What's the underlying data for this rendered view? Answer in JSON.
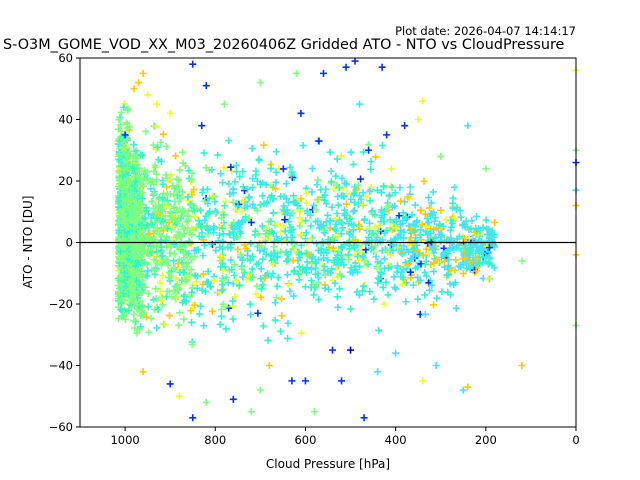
{
  "chart_data": {
    "type": "scatter",
    "title": "S-O3M_GOME_VOD_XX_M03_20260406Z Gridded ATO - NTO vs CloudPressure",
    "annotation": "Plot date: 2026-04-07 14:14:17",
    "xlabel": "Cloud Pressure [hPa]",
    "ylabel": "ATO - NTO [DU]",
    "xlim": [
      1100,
      0
    ],
    "ylim": [
      -60,
      60
    ],
    "x_inverted": true,
    "xticks": [
      1000,
      800,
      600,
      400,
      200,
      0
    ],
    "yticks": [
      -60,
      -40,
      -20,
      0,
      20,
      40,
      60
    ],
    "reference_line_y": 0,
    "marker": "plus",
    "grid": false,
    "legend": "none",
    "colors": {
      "green": "#7fff7f",
      "cyan": "#2ff5d0",
      "aqua": "#48e0ff",
      "yellow": "#e8ff2a",
      "gold": "#ffc800",
      "blue": "#0030ff",
      "darkblue": "#0000c8"
    },
    "cloud_regions": [
      {
        "x": [
          1015,
          990
        ],
        "y": [
          -35,
          55
        ],
        "color": "green",
        "density": 1.0
      },
      {
        "x": [
          990,
          850
        ],
        "y": [
          -40,
          45
        ],
        "color": "green",
        "density": 0.9
      },
      {
        "x": [
          850,
          600
        ],
        "y": [
          -35,
          40
        ],
        "color": "cyan",
        "density": 0.8
      },
      {
        "x": [
          600,
          400
        ],
        "y": [
          -30,
          35
        ],
        "color": "cyan",
        "density": 0.7
      },
      {
        "x": [
          400,
          250
        ],
        "y": [
          -25,
          25
        ],
        "color": "aqua",
        "density": 0.5
      },
      {
        "x": [
          250,
          180
        ],
        "y": [
          -15,
          10
        ],
        "color": "aqua",
        "density": 0.3
      }
    ],
    "sample_points": [
      {
        "x": 970,
        "y": 52,
        "c": "gold"
      },
      {
        "x": 960,
        "y": 55,
        "c": "gold"
      },
      {
        "x": 950,
        "y": 48,
        "c": "yellow"
      },
      {
        "x": 980,
        "y": 50,
        "c": "gold"
      },
      {
        "x": 930,
        "y": 45,
        "c": "yellow"
      },
      {
        "x": 900,
        "y": 42,
        "c": "yellow"
      },
      {
        "x": 850,
        "y": 58,
        "c": "blue"
      },
      {
        "x": 820,
        "y": 51,
        "c": "blue"
      },
      {
        "x": 780,
        "y": 45,
        "c": "green"
      },
      {
        "x": 700,
        "y": 52,
        "c": "green"
      },
      {
        "x": 620,
        "y": 55,
        "c": "green"
      },
      {
        "x": 560,
        "y": 55,
        "c": "blue"
      },
      {
        "x": 510,
        "y": 57,
        "c": "blue"
      },
      {
        "x": 490,
        "y": 59,
        "c": "blue"
      },
      {
        "x": 430,
        "y": 57,
        "c": "blue"
      },
      {
        "x": 480,
        "y": 45,
        "c": "aqua"
      },
      {
        "x": 420,
        "y": 35,
        "c": "blue"
      },
      {
        "x": 350,
        "y": 40,
        "c": "yellow"
      },
      {
        "x": 340,
        "y": 46,
        "c": "yellow"
      },
      {
        "x": 300,
        "y": 28,
        "c": "green"
      },
      {
        "x": 240,
        "y": 38,
        "c": "aqua"
      },
      {
        "x": 200,
        "y": 24,
        "c": "green"
      },
      {
        "x": 120,
        "y": -6,
        "c": "green"
      },
      {
        "x": 120,
        "y": -40,
        "c": "gold"
      },
      {
        "x": 0,
        "y": 56,
        "c": "yellow"
      },
      {
        "x": 0,
        "y": 26,
        "c": "blue"
      },
      {
        "x": 0,
        "y": 30,
        "c": "green"
      },
      {
        "x": 0,
        "y": 17,
        "c": "aqua"
      },
      {
        "x": 0,
        "y": 12,
        "c": "gold"
      },
      {
        "x": 0,
        "y": -4,
        "c": "gold"
      },
      {
        "x": 0,
        "y": -27,
        "c": "green"
      },
      {
        "x": 960,
        "y": -42,
        "c": "gold"
      },
      {
        "x": 900,
        "y": -46,
        "c": "blue"
      },
      {
        "x": 880,
        "y": -50,
        "c": "yellow"
      },
      {
        "x": 850,
        "y": -57,
        "c": "blue"
      },
      {
        "x": 820,
        "y": -52,
        "c": "green"
      },
      {
        "x": 760,
        "y": -51,
        "c": "blue"
      },
      {
        "x": 720,
        "y": -55,
        "c": "green"
      },
      {
        "x": 700,
        "y": -48,
        "c": "green"
      },
      {
        "x": 680,
        "y": -40,
        "c": "gold"
      },
      {
        "x": 630,
        "y": -45,
        "c": "blue"
      },
      {
        "x": 600,
        "y": -45,
        "c": "blue"
      },
      {
        "x": 580,
        "y": -55,
        "c": "green"
      },
      {
        "x": 520,
        "y": -45,
        "c": "blue"
      },
      {
        "x": 470,
        "y": -57,
        "c": "blue"
      },
      {
        "x": 440,
        "y": -42,
        "c": "aqua"
      },
      {
        "x": 400,
        "y": -36,
        "c": "aqua"
      },
      {
        "x": 340,
        "y": -45,
        "c": "yellow"
      },
      {
        "x": 310,
        "y": -40,
        "c": "aqua"
      },
      {
        "x": 240,
        "y": -47,
        "c": "gold"
      },
      {
        "x": 250,
        "y": -48,
        "c": "aqua"
      },
      {
        "x": 500,
        "y": -35,
        "c": "darkblue"
      },
      {
        "x": 540,
        "y": -35,
        "c": "blue"
      },
      {
        "x": 1000,
        "y": 35,
        "c": "blue"
      },
      {
        "x": 830,
        "y": 38,
        "c": "blue"
      },
      {
        "x": 610,
        "y": 42,
        "c": "blue"
      },
      {
        "x": 570,
        "y": 33,
        "c": "blue"
      },
      {
        "x": 460,
        "y": 30,
        "c": "blue"
      },
      {
        "x": 380,
        "y": 38,
        "c": "blue"
      }
    ]
  }
}
